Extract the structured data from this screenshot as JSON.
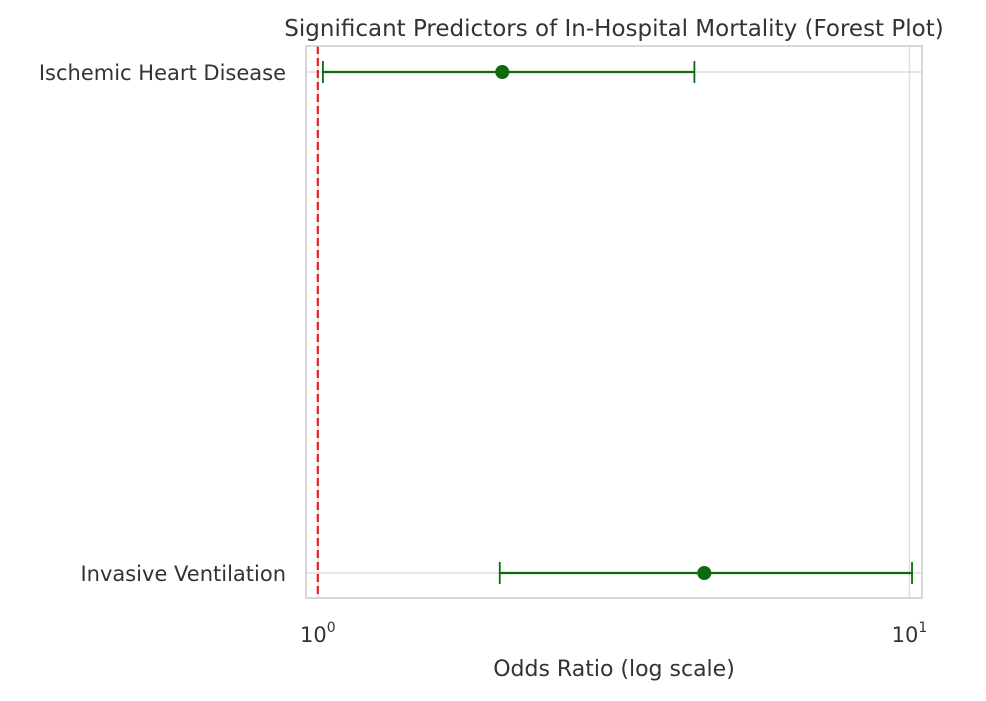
{
  "chart_data": {
    "type": "forest",
    "title": "Significant Predictors of In-Hospital Mortality (Forest Plot)",
    "xlabel": "Odds Ratio (log scale)",
    "ylabel": "",
    "x_scale": "log",
    "xlim": [
      0.955,
      10.5
    ],
    "x_ticks": [
      {
        "value": 1,
        "base": "10",
        "exp": "0"
      },
      {
        "value": 10,
        "base": "10",
        "exp": "1"
      }
    ],
    "reference_line": {
      "value": 1,
      "style": "dashed",
      "color": "#e3211c"
    },
    "grid": true,
    "point_color": "#0d6b0d",
    "rows": [
      {
        "label": "Ischemic Heart Disease",
        "or": 2.05,
        "ci_low": 1.02,
        "ci_high": 4.33
      },
      {
        "label": "Invasive Ventilation",
        "or": 4.5,
        "ci_low": 2.03,
        "ci_high": 10.1
      }
    ]
  }
}
